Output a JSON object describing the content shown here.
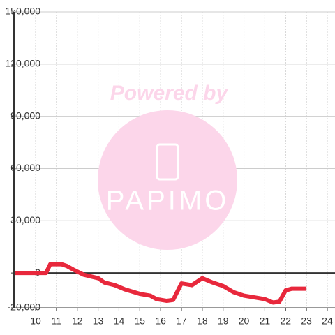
{
  "chart_data": {
    "type": "line",
    "watermark": {
      "line1": "Powered by",
      "line2": "PAPIMO"
    },
    "x": [
      9,
      10.5,
      10.7,
      11.25,
      11.5,
      11.8,
      12.3,
      13,
      13.3,
      13.8,
      14.3,
      15,
      15.5,
      15.8,
      16.3,
      16.6,
      17,
      17.5,
      18,
      18.5,
      19,
      19.5,
      20,
      20.5,
      21,
      21.4,
      21.7,
      22,
      22.3,
      23
    ],
    "series": [
      {
        "color": "#e8283c",
        "values": [
          0,
          0,
          5000,
          5000,
          4000,
          2000,
          -1000,
          -3000,
          -5500,
          -7000,
          -9500,
          -12000,
          -13000,
          -15000,
          -16000,
          -15500,
          -6000,
          -7000,
          -3000,
          -5500,
          -7500,
          -11000,
          -13000,
          -14000,
          -15000,
          -17000,
          -16500,
          -10000,
          -9000,
          -9000
        ]
      }
    ],
    "xlim": [
      8.96,
      24.37
    ],
    "xticks": [
      10,
      11,
      12,
      13,
      14,
      15,
      16,
      17,
      18,
      19,
      20,
      21,
      22,
      23,
      24
    ],
    "ylim": [
      -20000,
      150000
    ],
    "yticks": [
      {
        "value": -20000,
        "label": "-20,000"
      },
      0,
      {
        "value": 30000,
        "label": "30,000"
      },
      {
        "value": 60000,
        "label": "60,000"
      },
      {
        "value": 90000,
        "label": "90,000"
      },
      {
        "value": 120000,
        "label": "120,000"
      },
      {
        "value": 150000,
        "label": "150,000"
      }
    ],
    "grid": true
  }
}
